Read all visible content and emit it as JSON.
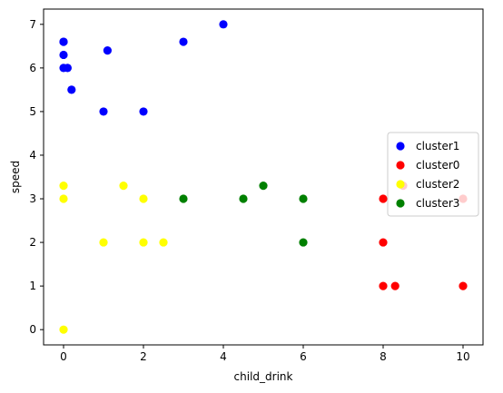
{
  "chart_data": {
    "type": "scatter",
    "title": "",
    "xlabel": "child_drink",
    "ylabel": "speed",
    "xlim": [
      -0.5,
      10.5
    ],
    "ylim": [
      -0.35,
      7.35
    ],
    "xticks": [
      0,
      2,
      4,
      6,
      8,
      10
    ],
    "yticks": [
      0,
      1,
      2,
      3,
      4,
      5,
      6,
      7
    ],
    "grid": false,
    "legend_position": "center-right",
    "series": [
      {
        "name": "cluster1",
        "color": "#0000ff",
        "points": [
          [
            0,
            6.6
          ],
          [
            0,
            6.6
          ],
          [
            0,
            6.3
          ],
          [
            0,
            6.0
          ],
          [
            0.1,
            6.0
          ],
          [
            0.2,
            5.5
          ],
          [
            1,
            5.0
          ],
          [
            1.1,
            6.4
          ],
          [
            2,
            5.0
          ],
          [
            3,
            6.6
          ],
          [
            4,
            7.0
          ]
        ]
      },
      {
        "name": "cluster0",
        "color": "#ff0000",
        "points": [
          [
            8,
            3.0
          ],
          [
            8,
            2.0
          ],
          [
            8,
            1.0
          ],
          [
            8.3,
            1.0
          ],
          [
            8.5,
            3.3
          ],
          [
            10,
            1.0
          ],
          [
            10,
            3.0
          ]
        ]
      },
      {
        "name": "cluster2",
        "color": "#ffff00",
        "points": [
          [
            0,
            3.3
          ],
          [
            0,
            3.0
          ],
          [
            0,
            0.0
          ],
          [
            1,
            2.0
          ],
          [
            1.5,
            3.3
          ],
          [
            2,
            3.0
          ],
          [
            2,
            2.0
          ],
          [
            2.5,
            2.0
          ]
        ]
      },
      {
        "name": "cluster3",
        "color": "#008000",
        "points": [
          [
            3,
            3.0
          ],
          [
            4.5,
            3.0
          ],
          [
            5,
            3.3
          ],
          [
            6,
            3.0
          ],
          [
            6,
            2.0
          ]
        ]
      }
    ]
  }
}
